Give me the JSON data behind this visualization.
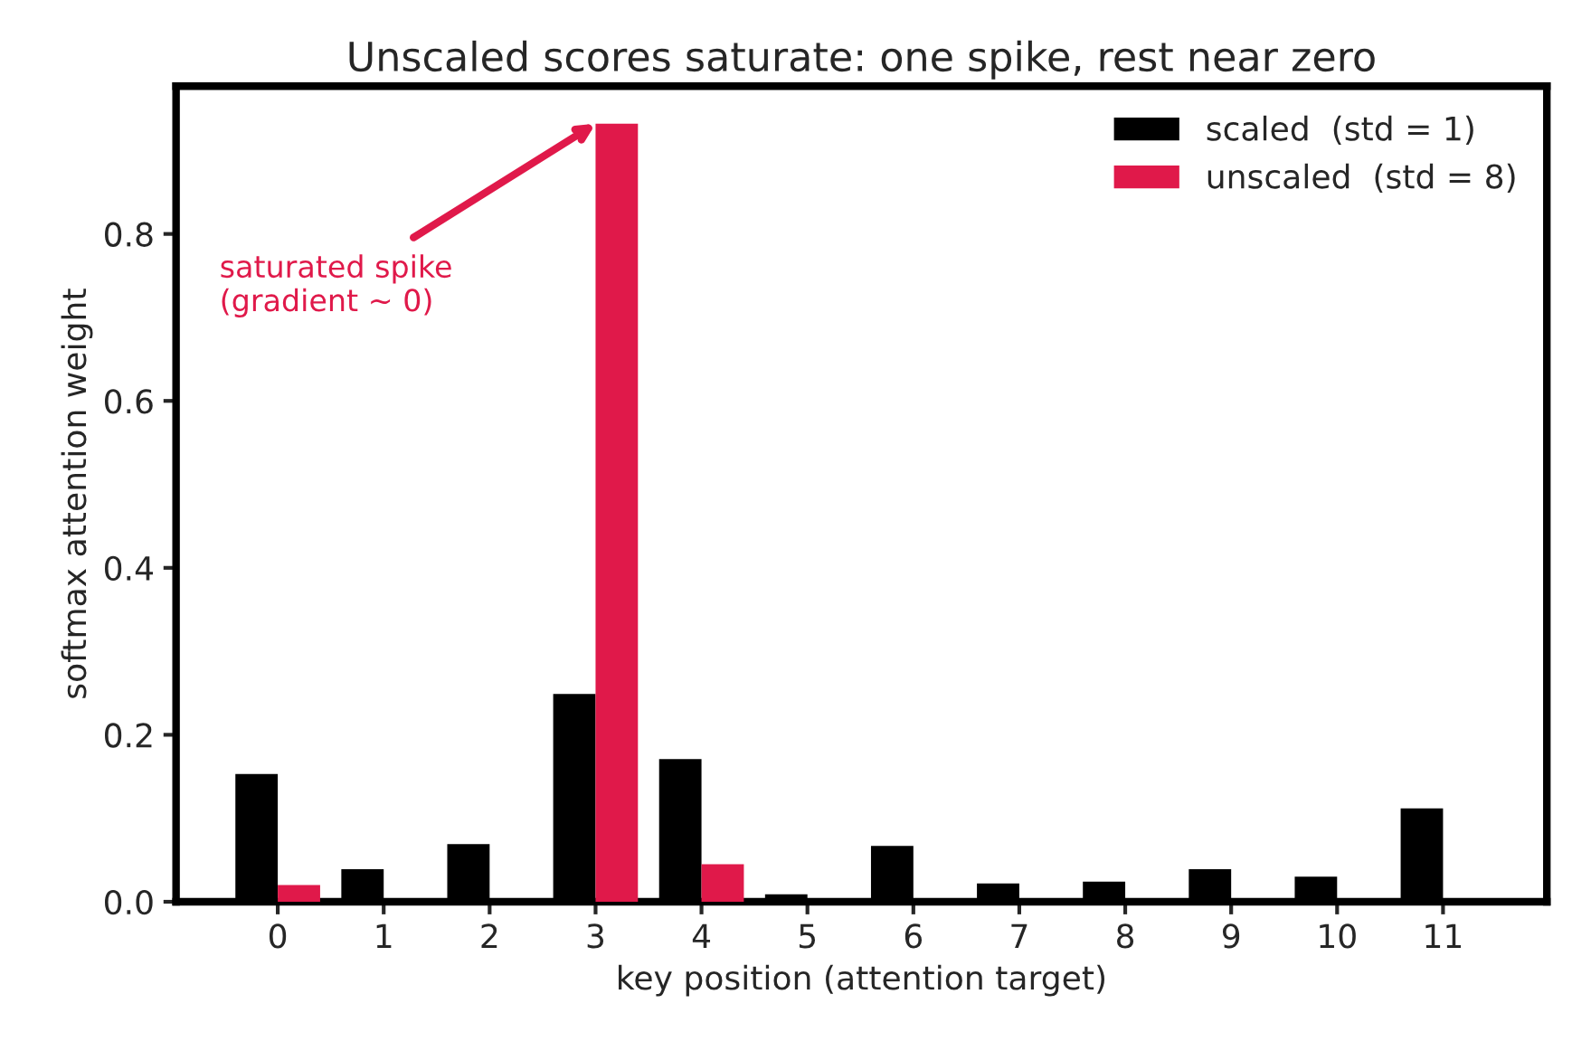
{
  "chart_data": {
    "type": "bar",
    "title": "Unscaled scores saturate: one spike, rest near zero",
    "xlabel": "key position (attention target)",
    "ylabel": "softmax attention weight",
    "categories": [
      "0",
      "1",
      "2",
      "3",
      "4",
      "5",
      "6",
      "7",
      "8",
      "9",
      "10",
      "11"
    ],
    "series": [
      {
        "name": "scaled  (std = 1)",
        "color": "#000000",
        "values": [
          0.153,
          0.039,
          0.069,
          0.249,
          0.171,
          0.009,
          0.067,
          0.022,
          0.024,
          0.039,
          0.03,
          0.112
        ]
      },
      {
        "name": "unscaled  (std = 8)",
        "color": "#e0194a",
        "values": [
          0.02,
          0.0,
          0.0,
          0.932,
          0.045,
          0.0,
          0.0,
          0.0,
          0.0,
          0.0,
          0.0,
          0.0
        ]
      }
    ],
    "ylim": [
      0,
      0.977
    ],
    "yticks": [
      {
        "value": 0,
        "label": "0.0"
      },
      0.2,
      0.4,
      0.6,
      0.8
    ],
    "annotations": [
      {
        "text": "saturated spike\n(gradient ~ 0)",
        "x": "3",
        "y": 0.932
      }
    ],
    "legend": "top right",
    "grid": false
  }
}
